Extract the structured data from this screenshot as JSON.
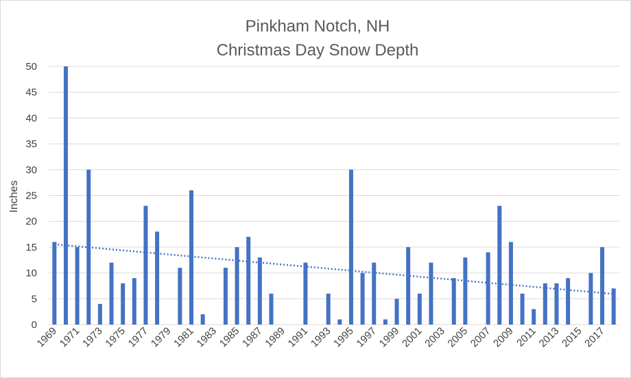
{
  "chart_data": {
    "type": "bar",
    "title": "Pinkham Notch, NH",
    "subtitle": "Christmas Day Snow Depth",
    "xlabel": "",
    "ylabel": "Inches",
    "ylim": [
      0,
      50
    ],
    "yticks": [
      0,
      5,
      10,
      15,
      20,
      25,
      30,
      35,
      40,
      45,
      50
    ],
    "grid": true,
    "trendline": "linear",
    "colors": {
      "bar": "#4472c4",
      "trend": "#4472c4",
      "grid": "#d9d9d9"
    },
    "categories": [
      1969,
      1970,
      1971,
      1972,
      1973,
      1974,
      1975,
      1976,
      1977,
      1978,
      1979,
      1980,
      1981,
      1982,
      1983,
      1984,
      1985,
      1986,
      1987,
      1988,
      1989,
      1990,
      1991,
      1992,
      1993,
      1994,
      1995,
      1996,
      1997,
      1998,
      1999,
      2000,
      2001,
      2002,
      2003,
      2004,
      2005,
      2006,
      2007,
      2008,
      2009,
      2010,
      2011,
      2012,
      2013,
      2014,
      2015,
      2016,
      2017,
      2018
    ],
    "tick_labels": [
      "1969",
      "1971",
      "1973",
      "1975",
      "1977",
      "1979",
      "1981",
      "1983",
      "1985",
      "1987",
      "1989",
      "1991",
      "1993",
      "1995",
      "1997",
      "1999",
      "2001",
      "2003",
      "2005",
      "2007",
      "2009",
      "2011",
      "2013",
      "2015",
      "2017"
    ],
    "values": [
      16,
      50,
      15,
      30,
      4,
      12,
      8,
      9,
      23,
      18,
      0,
      11,
      26,
      2,
      0,
      11,
      15,
      17,
      13,
      6,
      0,
      0,
      12,
      0,
      6,
      1,
      30,
      10,
      12,
      1,
      5,
      15,
      6,
      12,
      0,
      9,
      13,
      0,
      14,
      23,
      16,
      6,
      3,
      8,
      8,
      9,
      0,
      10,
      15,
      7
    ]
  }
}
